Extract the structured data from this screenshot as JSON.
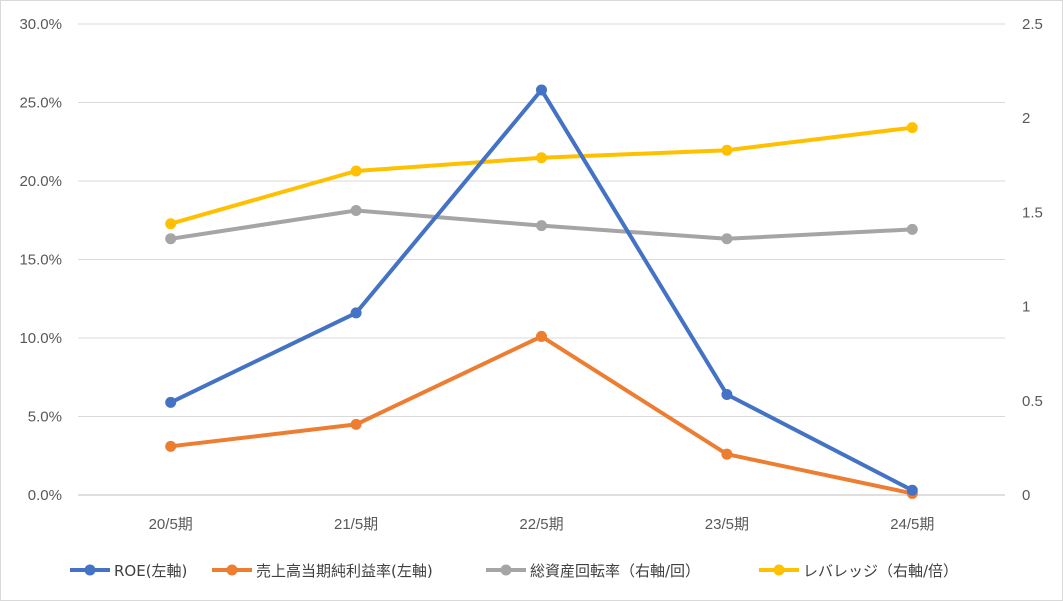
{
  "chart_data": {
    "type": "line",
    "categories": [
      "20/5期",
      "21/5期",
      "22/5期",
      "23/5期",
      "24/5期"
    ],
    "y_left": {
      "min": 0,
      "max": 0.3,
      "step": 0.05,
      "tick_labels": [
        "0.0%",
        "5.0%",
        "10.0%",
        "15.0%",
        "20.0%",
        "25.0%",
        "30.0%"
      ]
    },
    "y_right": {
      "min": 0,
      "max": 2.5,
      "step": 0.5,
      "tick_labels": [
        "0",
        "0.5",
        "1",
        "1.5",
        "2",
        "2.5"
      ]
    },
    "grid": true,
    "legend_position": "bottom",
    "series": [
      {
        "name": "ROE(左軸)",
        "axis": "left",
        "color": "#4472c4",
        "values": [
          0.059,
          0.116,
          0.258,
          0.064,
          0.003
        ]
      },
      {
        "name": "売上高当期純利益率(左軸)",
        "axis": "left",
        "color": "#ed7d31",
        "values": [
          0.031,
          0.045,
          0.101,
          0.026,
          0.001
        ]
      },
      {
        "name": "総資産回転率（右軸/回）",
        "axis": "right",
        "color": "#a5a5a5",
        "values": [
          1.36,
          1.51,
          1.43,
          1.36,
          1.41
        ]
      },
      {
        "name": "レバレッジ（右軸/倍）",
        "axis": "right",
        "color": "#ffc000",
        "values": [
          1.44,
          1.72,
          1.79,
          1.83,
          1.95
        ]
      }
    ]
  }
}
